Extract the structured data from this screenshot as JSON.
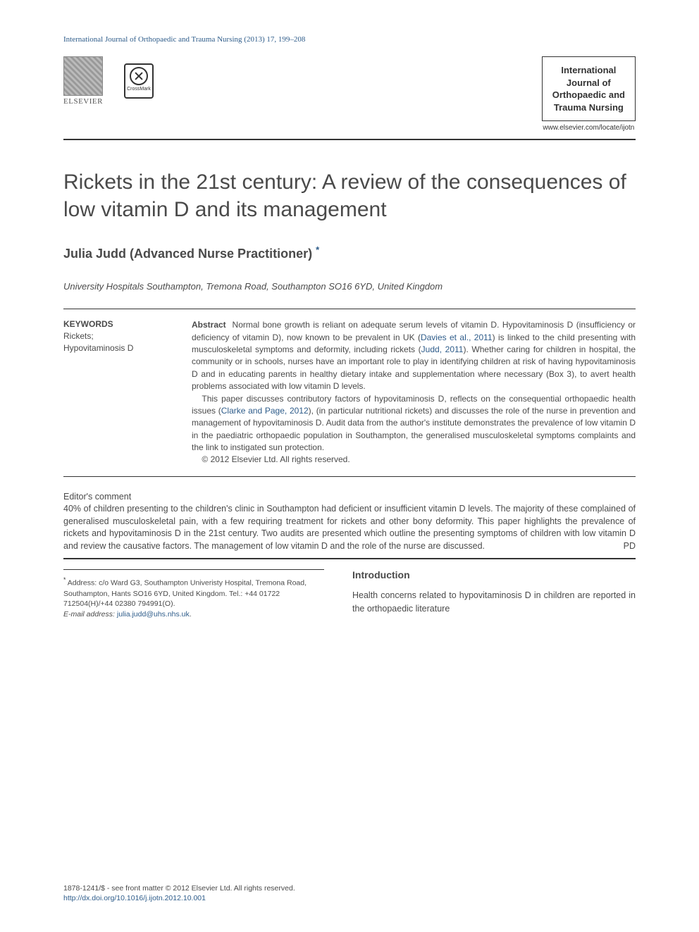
{
  "header": {
    "citation": "International Journal of Orthopaedic and Trauma Nursing (2013) 17, 199–208",
    "elsevier_label": "ELSEVIER",
    "crossmark_label": "CrossMark",
    "journal_box_line1": "International",
    "journal_box_line2": "Journal of",
    "journal_box_line3": "Orthopaedic and",
    "journal_box_line4": "Trauma Nursing",
    "journal_url": "www.elsevier.com/locate/ijotn"
  },
  "title": "Rickets in the 21st century: A review of the consequences of low vitamin D and its management",
  "author": {
    "name": "Julia Judd (Advanced Nurse Practitioner)",
    "footnote_marker": "*"
  },
  "affiliation": "University Hospitals Southampton, Tremona Road, Southampton SO16 6YD, United Kingdom",
  "keywords": {
    "heading": "KEYWORDS",
    "items": [
      "Rickets;",
      "Hypovitaminosis D"
    ]
  },
  "abstract": {
    "runin": "Abstract",
    "p1a": "Normal bone growth is reliant on adequate serum levels of vitamin D. Hypovitaminosis D (insufficiency or deficiency of vitamin D), now known to be prevalent in UK (",
    "ref1": "Davies et al., 2011",
    "p1b": ") is linked to the child presenting with musculoskeletal symptoms and deformity, including rickets (",
    "ref2": "Judd, 2011",
    "p1c": "). Whether caring for children in hospital, the community or in schools, nurses have an important role to play in identifying children at risk of having hypovitaminosis D and in educating parents in healthy dietary intake and supplementation where necessary (Box 3), to avert health problems associated with low vitamin D levels.",
    "p2a": "This paper discusses contributory factors of hypovitaminosis D, reflects on the consequential orthopaedic health issues (",
    "ref3": "Clarke and Page, 2012",
    "p2b": "), (in particular nutritional rickets) and discusses the role of the nurse in prevention and management of hypovitaminosis D. Audit data from the author's institute demonstrates the prevalence of low vitamin D in the paediatric orthopaedic population in Southampton, the generalised musculoskeletal symptoms complaints and the link to instigated sun protection.",
    "copyright": "© 2012 Elsevier Ltd. All rights reserved."
  },
  "editor": {
    "heading": "Editor's comment",
    "text": "40% of children presenting to the children's clinic in Southampton had deficient or insufficient vitamin D levels. The majority of these complained of generalised musculoskeletal pain, with a few requiring treatment for rickets and other bony deformity. This paper highlights the prevalence of rickets and hypovitaminosis D in the 21st century. Two audits are presented which outline the presenting symptoms of children with low vitamin D and review the causative factors. The management of low vitamin D and the role of the nurse are discussed.",
    "signature": "PD"
  },
  "footnote": {
    "star": "*",
    "address": "Address: c/o Ward G3, Southampton Univeristy Hospital, Tremona Road, Southampton, Hants SO16 6YD, United Kingdom. Tel.: +44 01722 712504(H)/+44 02380 794991(O).",
    "email_label": "E-mail address:",
    "email": "julia.judd@uhs.nhs.uk",
    "email_suffix": "."
  },
  "intro": {
    "heading": "Introduction",
    "text": "Health concerns related to hypovitaminosis D in children are reported in the orthopaedic literature"
  },
  "footer": {
    "line1": "1878-1241/$ - see front matter © 2012 Elsevier Ltd. All rights reserved.",
    "doi": "http://dx.doi.org/10.1016/j.ijotn.2012.10.001"
  },
  "colors": {
    "link": "#2e5c8a",
    "text": "#4a4a4a",
    "rule": "#333333",
    "background": "#ffffff"
  }
}
